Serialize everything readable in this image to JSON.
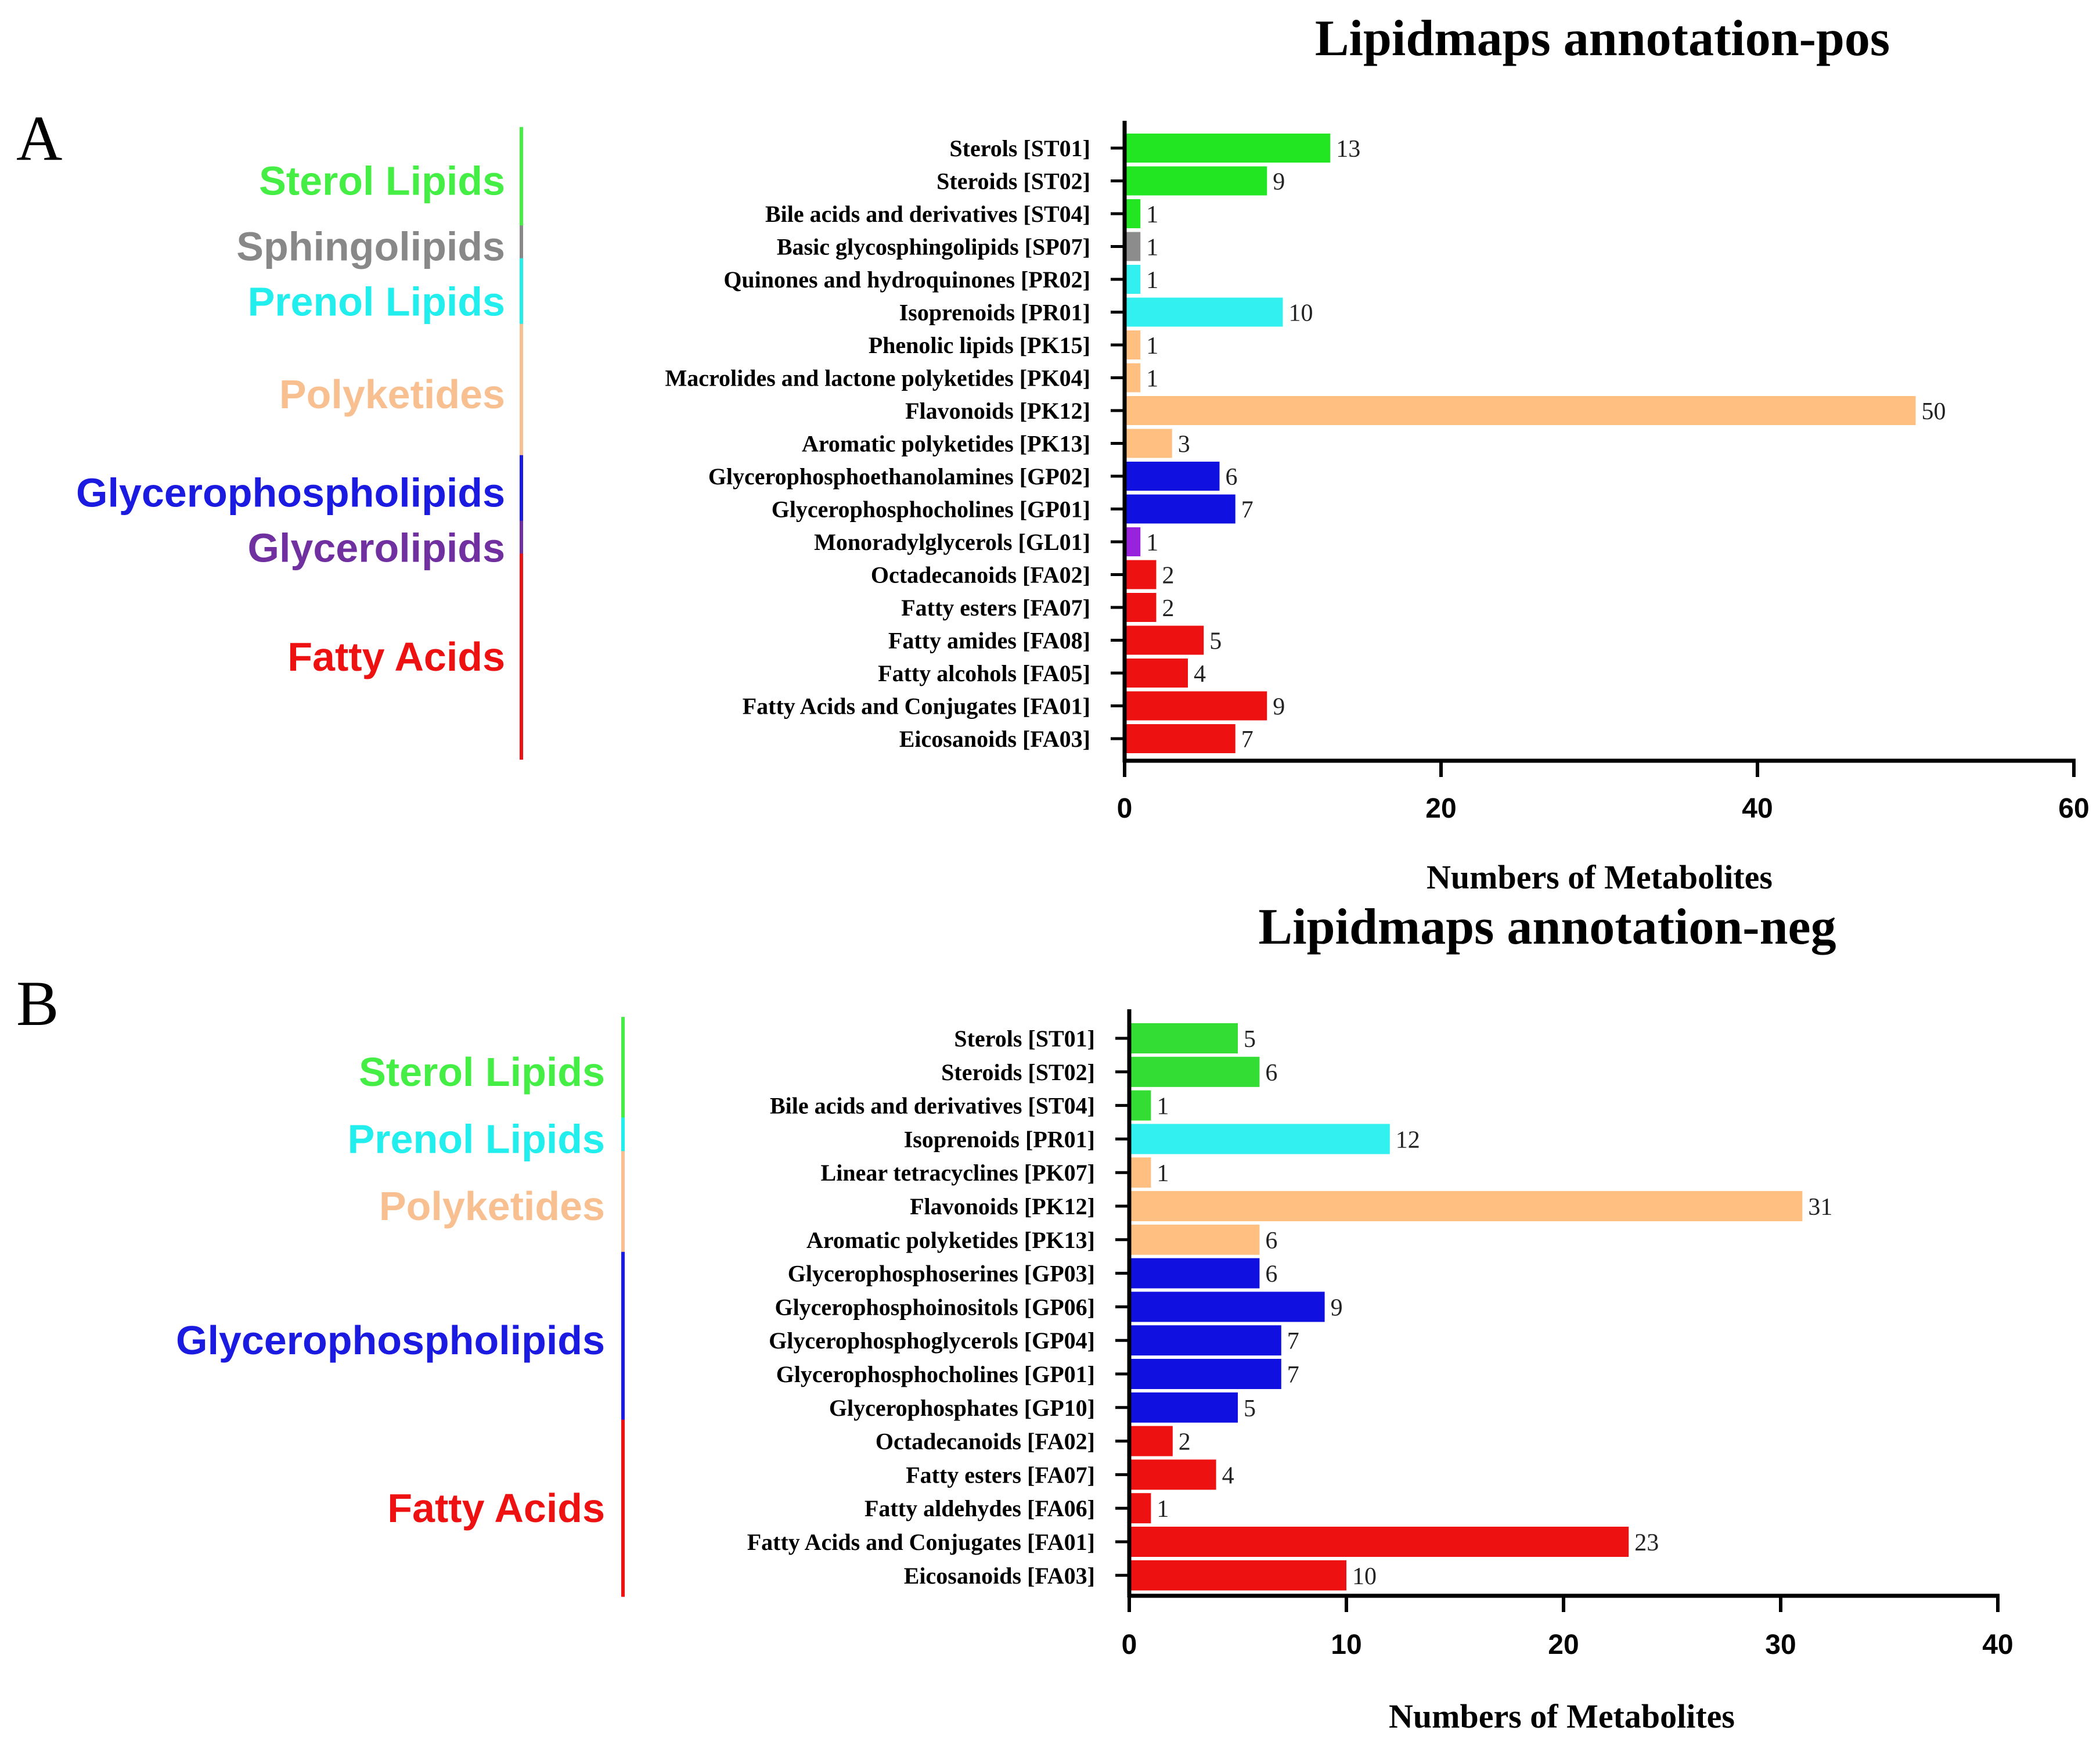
{
  "chart_data": [
    {
      "panel_label": "A",
      "type": "bar",
      "orientation": "horizontal",
      "title": "Lipidmaps annotation-pos",
      "xlabel": "Numbers of Metabolites",
      "ylabel": "",
      "xlim": [
        0,
        60
      ],
      "xticks": [
        "0",
        "20",
        "40",
        "60"
      ],
      "grid": false,
      "categories": [
        "Sterols [ST01]",
        "Steroids [ST02]",
        "Bile acids and derivatives [ST04]",
        "Basic glycosphingolipids [SP07]",
        "Quinones and hydroquinones [PR02]",
        "Isoprenoids [PR01]",
        "Phenolic lipids [PK15]",
        "Macrolides and lactone polyketides [PK04]",
        "Flavonoids [PK12]",
        "Aromatic polyketides [PK13]",
        "Glycerophosphoethanolamines [GP02]",
        "Glycerophosphocholines [GP01]",
        "Monoradylglycerols [GL01]",
        "Octadecanoids [FA02]",
        "Fatty esters [FA07]",
        "Fatty amides [FA08]",
        "Fatty alcohols [FA05]",
        "Fatty Acids and Conjugates [FA01]",
        "Eicosanoids [FA03]"
      ],
      "values": [
        13,
        9,
        1,
        1,
        1,
        10,
        1,
        1,
        50,
        3,
        6,
        7,
        1,
        2,
        2,
        5,
        4,
        9,
        7
      ],
      "value_labels": [
        "13",
        "9",
        "1",
        "1",
        "1",
        "10",
        "1",
        "1",
        "50",
        "3",
        "6",
        "7",
        "1",
        "2",
        "2",
        "5",
        "4",
        "9",
        "7"
      ],
      "bar_colors": [
        "#22e622",
        "#22e622",
        "#22e622",
        "#8c8c8c",
        "#33f0f0",
        "#33f0f0",
        "#ffbf80",
        "#ffbf80",
        "#ffbf80",
        "#ffbf80",
        "#1010e0",
        "#1010e0",
        "#9922dd",
        "#ee1111",
        "#ee1111",
        "#ee1111",
        "#ee1111",
        "#ee1111",
        "#ee1111"
      ],
      "groups": [
        {
          "name": "Sterol Lipids",
          "color": "#44ee44",
          "first": 0,
          "last": 2
        },
        {
          "name": "Sphingolipids",
          "color": "#888888",
          "first": 3,
          "last": 3
        },
        {
          "name": "Prenol Lipids",
          "color": "#22eeee",
          "first": 4,
          "last": 5
        },
        {
          "name": "Polyketides",
          "color": "#f8c090",
          "first": 6,
          "last": 9
        },
        {
          "name": "Glycerophospholipids",
          "color": "#1a1ae0",
          "first": 10,
          "last": 11
        },
        {
          "name": "Glycerolipids",
          "color": "#7030a0",
          "first": 12,
          "last": 12
        },
        {
          "name": "Fatty Acids",
          "color": "#ee1111",
          "first": 13,
          "last": 18
        }
      ]
    },
    {
      "panel_label": "B",
      "type": "bar",
      "orientation": "horizontal",
      "title": "Lipidmaps annotation-neg",
      "xlabel": "Numbers of Metabolites",
      "ylabel": "",
      "xlim": [
        0,
        40
      ],
      "xticks": [
        "0",
        "10",
        "20",
        "30",
        "40"
      ],
      "grid": false,
      "categories": [
        "Sterols [ST01]",
        "Steroids [ST02]",
        "Bile acids and derivatives [ST04]",
        "Isoprenoids [PR01]",
        "Linear tetracyclines [PK07]",
        "Flavonoids [PK12]",
        "Aromatic polyketides [PK13]",
        "Glycerophosphoserines [GP03]",
        "Glycerophosphoinositols [GP06]",
        "Glycerophosphoglycerols [GP04]",
        "Glycerophosphocholines [GP01]",
        "Glycerophosphates [GP10]",
        "Octadecanoids [FA02]",
        "Fatty esters [FA07]",
        "Fatty aldehydes [FA06]",
        "Fatty Acids and Conjugates [FA01]",
        "Eicosanoids [FA03]"
      ],
      "values": [
        5,
        6,
        1,
        12,
        1,
        31,
        6,
        6,
        9,
        7,
        7,
        5,
        2,
        4,
        1,
        23,
        10
      ],
      "value_labels": [
        "5",
        "6",
        "1",
        "12",
        "1",
        "31",
        "6",
        "6",
        "9",
        "7",
        "7",
        "5",
        "2",
        "4",
        "1",
        "23",
        "10"
      ],
      "bar_colors": [
        "#33dd33",
        "#33dd33",
        "#33dd33",
        "#33f0f0",
        "#ffbf80",
        "#ffbf80",
        "#ffbf80",
        "#1010e0",
        "#1010e0",
        "#1010e0",
        "#1010e0",
        "#1010e0",
        "#ee1111",
        "#ee1111",
        "#ee1111",
        "#ee1111",
        "#ee1111"
      ],
      "groups": [
        {
          "name": "Sterol Lipids",
          "color": "#44ee44",
          "first": 0,
          "last": 2
        },
        {
          "name": "Prenol Lipids",
          "color": "#22eeee",
          "first": 3,
          "last": 3
        },
        {
          "name": "Polyketides",
          "color": "#f8c090",
          "first": 4,
          "last": 6
        },
        {
          "name": "Glycerophospholipids",
          "color": "#1a1ae0",
          "first": 7,
          "last": 11
        },
        {
          "name": "Fatty Acids",
          "color": "#ee1111",
          "first": 12,
          "last": 16
        }
      ]
    }
  ]
}
